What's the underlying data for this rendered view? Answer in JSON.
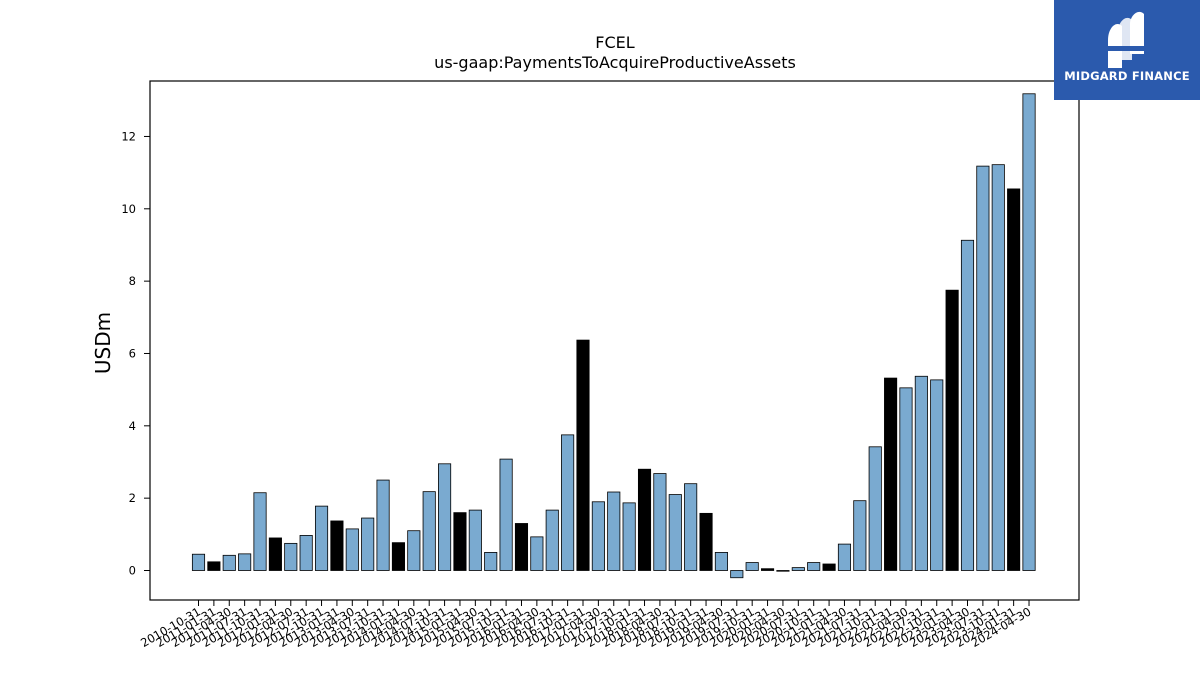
{
  "brand": {
    "name": "MIDGARD FINANCE",
    "color": "#2b5aad"
  },
  "chart_data": {
    "type": "bar",
    "title": "FCEL",
    "subtitle": "us-gaap:PaymentsToAcquireProductiveAssets",
    "xlabel": "",
    "ylabel": "USDm",
    "ylim": [
      -0.8,
      13.3
    ],
    "yticks": [
      0,
      2,
      4,
      6,
      8,
      10,
      12
    ],
    "grid": false,
    "colors": {
      "quarter": "#7aaad0",
      "fiscal_year_end": "#000000"
    },
    "categories": [
      "2010-10-31",
      "2011-01-31",
      "2011-04-30",
      "2011-07-31",
      "2011-10-31",
      "2012-01-31",
      "2012-04-30",
      "2012-07-31",
      "2012-10-31",
      "2013-01-31",
      "2013-04-30",
      "2013-07-31",
      "2013-10-31",
      "2014-01-31",
      "2014-04-30",
      "2014-07-31",
      "2014-10-31",
      "2015-01-31",
      "2015-04-30",
      "2015-07-31",
      "2015-10-31",
      "2016-01-31",
      "2016-04-30",
      "2016-07-31",
      "2016-10-31",
      "2017-01-31",
      "2017-04-30",
      "2017-07-31",
      "2017-10-31",
      "2018-01-31",
      "2018-04-30",
      "2018-07-31",
      "2018-10-31",
      "2019-01-31",
      "2019-04-30",
      "2019-07-31",
      "2019-10-31",
      "2020-01-31",
      "2020-04-30",
      "2020-07-31",
      "2020-10-31",
      "2021-01-31",
      "2021-04-30",
      "2021-07-31",
      "2021-10-31",
      "2022-01-31",
      "2022-04-30",
      "2022-07-31",
      "2022-10-31",
      "2023-01-31",
      "2023-04-30",
      "2023-07-31",
      "2023-10-31",
      "2024-01-31",
      "2024-04-30"
    ],
    "values": [
      0.45,
      0.24,
      0.42,
      0.46,
      2.15,
      0.9,
      0.75,
      0.97,
      1.78,
      1.37,
      1.15,
      1.45,
      2.5,
      0.77,
      1.1,
      2.18,
      2.95,
      1.6,
      1.67,
      0.5,
      3.08,
      1.3,
      0.93,
      1.67,
      3.75,
      6.37,
      1.9,
      2.17,
      1.87,
      2.8,
      2.68,
      2.1,
      2.4,
      1.58,
      0.5,
      -0.2,
      0.22,
      0.05,
      -0.02,
      0.08,
      0.22,
      0.18,
      0.73,
      1.93,
      3.42,
      5.32,
      5.05,
      5.37,
      5.27,
      7.75,
      9.13,
      11.18,
      11.22,
      10.55,
      13.18
    ],
    "fiscal_year_end": [
      false,
      true,
      false,
      false,
      false,
      true,
      false,
      false,
      false,
      true,
      false,
      false,
      false,
      true,
      false,
      false,
      false,
      true,
      false,
      false,
      false,
      true,
      false,
      false,
      false,
      true,
      false,
      false,
      false,
      true,
      false,
      false,
      false,
      true,
      false,
      false,
      false,
      true,
      false,
      false,
      false,
      true,
      false,
      false,
      false,
      true,
      false,
      false,
      false,
      true,
      false,
      false,
      false,
      true,
      false
    ]
  }
}
